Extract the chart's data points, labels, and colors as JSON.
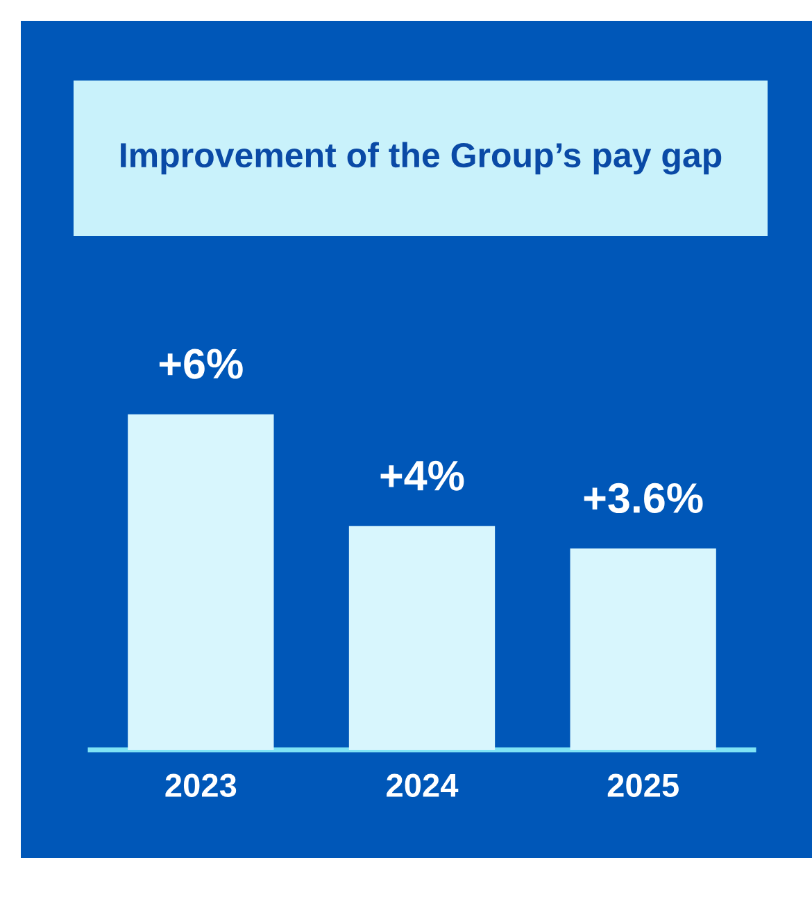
{
  "chart_data": {
    "type": "bar",
    "title": "Improvement of the Group’s pay gap",
    "categories": [
      "2023",
      "2024",
      "2025"
    ],
    "values": [
      6,
      4,
      3.6
    ],
    "value_labels": [
      "+6%",
      "+4%",
      "+3.6%"
    ],
    "color": "#d8f6fd",
    "grid": false,
    "legend": false
  }
}
